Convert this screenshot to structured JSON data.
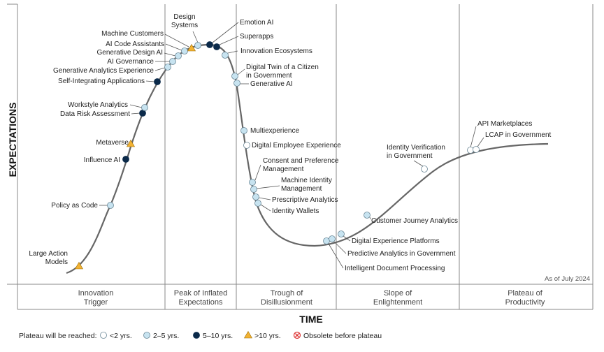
{
  "chart_data": {
    "type": "scatter",
    "y_axis_title": "EXPECTATIONS",
    "x_axis_title": "TIME",
    "as_of": "As of July 2024",
    "phases": [
      "Innovation\nTrigger",
      "Peak of Inflated\nExpectations",
      "Trough of\nDisillusionment",
      "Slope of\nEnlightenment",
      "Plateau of\nProductivity"
    ],
    "legend": {
      "title": "Plateau will be reached:",
      "items": [
        {
          "key": "lt2",
          "label": "<2 yrs."
        },
        {
          "key": "2to5",
          "label": "2–5 yrs."
        },
        {
          "key": "5to10",
          "label": "5–10 yrs."
        },
        {
          "key": "gt10",
          "label": ">10 yrs."
        },
        {
          "key": "obsolete",
          "label": "Obsolete before plateau"
        }
      ]
    },
    "colors": {
      "lt2": "#ffffff",
      "2to5": "#c7e3f0",
      "5to10": "#0b2a4a",
      "gt10": "#f2b233",
      "curve": "#666666"
    },
    "points": [
      {
        "name": "Large Action\nModels",
        "category": "gt10"
      },
      {
        "name": "Policy as Code",
        "category": "2to5"
      },
      {
        "name": "Influence AI",
        "category": "5to10"
      },
      {
        "name": "Metaverse",
        "category": "gt10"
      },
      {
        "name": "Data Risk Assessment",
        "category": "5to10"
      },
      {
        "name": "Workstyle Analytics",
        "category": "2to5"
      },
      {
        "name": "Self-Integrating Applications",
        "category": "5to10"
      },
      {
        "name": "Generative Analytics Experience",
        "category": "2to5"
      },
      {
        "name": "AI Governance",
        "category": "2to5"
      },
      {
        "name": "Generative Design AI",
        "category": "2to5"
      },
      {
        "name": "AI Code Assistants",
        "category": "2to5"
      },
      {
        "name": "Machine Customers",
        "category": "gt10"
      },
      {
        "name": "Design\nSystems",
        "category": "2to5"
      },
      {
        "name": "Emotion AI",
        "category": "5to10"
      },
      {
        "name": "Superapps",
        "category": "5to10"
      },
      {
        "name": "Innovation Ecosystems",
        "category": "2to5"
      },
      {
        "name": "Digital Twin of a Citizen\nin Government",
        "category": "2to5"
      },
      {
        "name": "Generative AI",
        "category": "2to5"
      },
      {
        "name": "Multiexperience",
        "category": "2to5"
      },
      {
        "name": "Digital Employee Experience",
        "category": "lt2"
      },
      {
        "name": "Consent and Preference\nManagement",
        "category": "2to5"
      },
      {
        "name": "Machine Identity\nManagement",
        "category": "2to5"
      },
      {
        "name": "Prescriptive Analytics",
        "category": "2to5"
      },
      {
        "name": "Identity Wallets",
        "category": "2to5"
      },
      {
        "name": "Intelligent Document Processing",
        "category": "2to5"
      },
      {
        "name": "Predictive Analytics in Government",
        "category": "2to5"
      },
      {
        "name": "Digital Experience Platforms",
        "category": "2to5"
      },
      {
        "name": "Customer Journey Analytics",
        "category": "2to5"
      },
      {
        "name": "Identity Verification\nin Government",
        "category": "lt2"
      },
      {
        "name": "API Marketplaces",
        "category": "lt2"
      },
      {
        "name": "LCAP in Government",
        "category": "lt2"
      }
    ]
  }
}
